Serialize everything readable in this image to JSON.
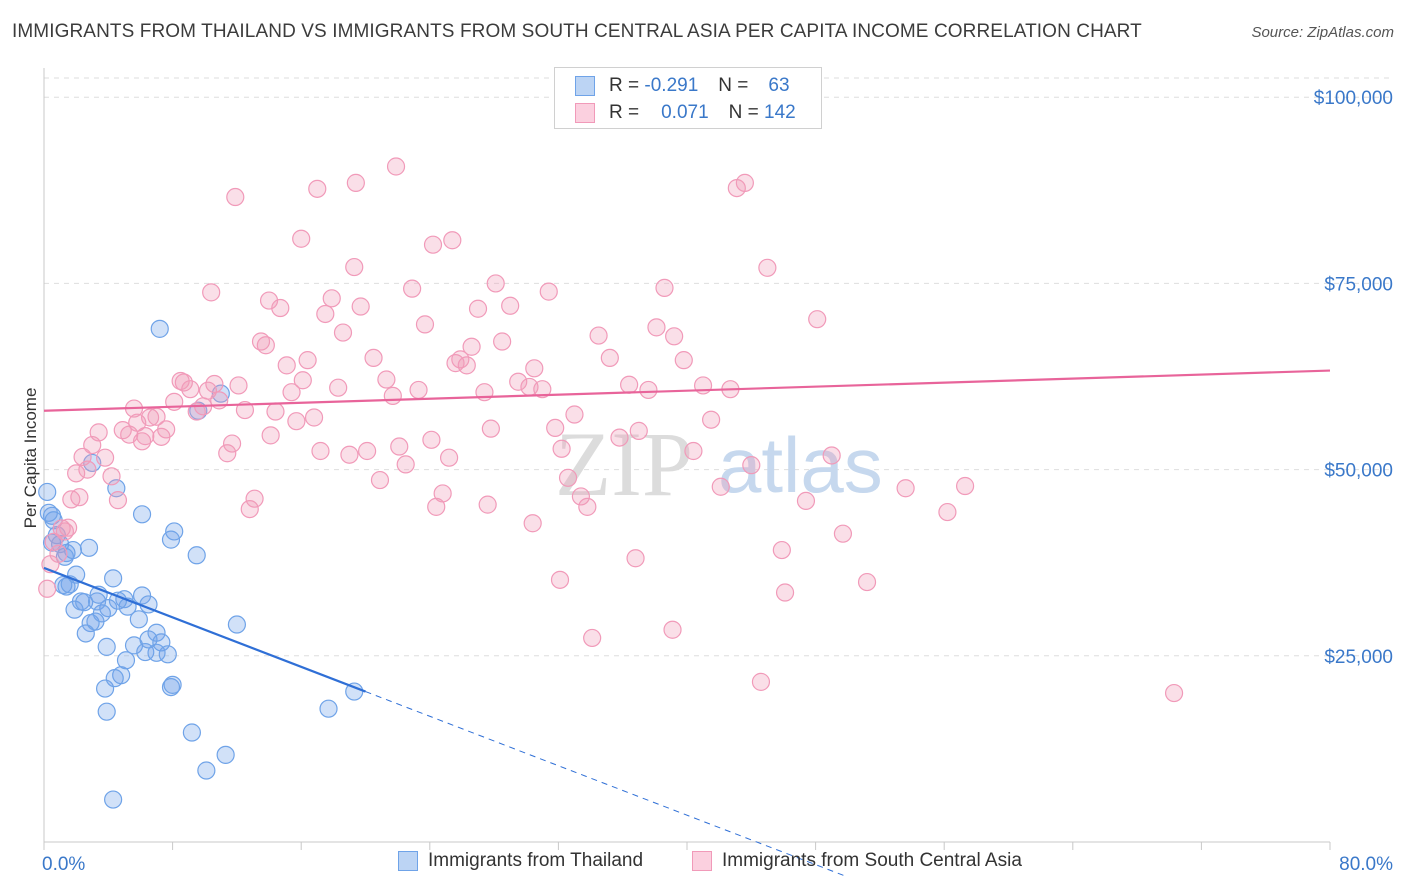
{
  "chart_data": {
    "type": "scatter",
    "title": "IMMIGRANTS FROM THAILAND VS IMMIGRANTS FROM SOUTH CENTRAL ASIA PER CAPITA INCOME CORRELATION CHART",
    "source": "Source: ZipAtlas.com",
    "xlabel": "",
    "ylabel": "Per Capita Income",
    "xlim": [
      0,
      80
    ],
    "ylim": [
      0,
      105000
    ],
    "x_tick_labels": [
      "0.0%",
      "80.0%"
    ],
    "y_ticks": [
      25000,
      50000,
      75000,
      100000
    ],
    "y_tick_labels": [
      "$25,000",
      "$50,000",
      "$75,000",
      "$100,000"
    ],
    "watermark": {
      "zip": "ZIP",
      "atlas": "atlas"
    },
    "legend": {
      "rows": [
        {
          "r_label": "R =",
          "r_value": "-0.291",
          "n_label": "N =",
          "n_value": "63"
        },
        {
          "r_label": "R =",
          "r_value": "0.071",
          "n_label": "N =",
          "n_value": "142"
        }
      ]
    },
    "series": [
      {
        "name": "Immigrants from Thailand",
        "color": "#6fa3e8",
        "line_color": "#2f6fd6",
        "trend": {
          "x0": 0,
          "y0": 36800,
          "x1": 20,
          "y1": 20200,
          "x_dash_end": 50
        },
        "points": [
          [
            0.2,
            47000
          ],
          [
            0.3,
            44200
          ],
          [
            0.5,
            43800
          ],
          [
            0.6,
            43200
          ],
          [
            0.8,
            41200
          ],
          [
            0.5,
            40200
          ],
          [
            1.0,
            40000
          ],
          [
            1.4,
            38800
          ],
          [
            1.8,
            39200
          ],
          [
            2.8,
            39500
          ],
          [
            1.3,
            38300
          ],
          [
            1.4,
            34300
          ],
          [
            1.2,
            34500
          ],
          [
            1.6,
            34600
          ],
          [
            1.9,
            31200
          ],
          [
            2.0,
            35900
          ],
          [
            2.3,
            32300
          ],
          [
            2.5,
            32200
          ],
          [
            2.9,
            29400
          ],
          [
            2.6,
            28000
          ],
          [
            3.2,
            29600
          ],
          [
            3.4,
            33200
          ],
          [
            4.0,
            31400
          ],
          [
            3.6,
            30700
          ],
          [
            3.3,
            32300
          ],
          [
            4.3,
            35400
          ],
          [
            3.9,
            26200
          ],
          [
            4.8,
            22400
          ],
          [
            5.0,
            32600
          ],
          [
            4.6,
            32400
          ],
          [
            5.1,
            24400
          ],
          [
            5.9,
            29900
          ],
          [
            5.2,
            31600
          ],
          [
            5.6,
            26400
          ],
          [
            6.1,
            33100
          ],
          [
            6.5,
            27200
          ],
          [
            6.3,
            25500
          ],
          [
            6.5,
            31900
          ],
          [
            7.0,
            28100
          ],
          [
            7.3,
            26800
          ],
          [
            7.7,
            25200
          ],
          [
            7.0,
            25400
          ],
          [
            7.9,
            20800
          ],
          [
            8.0,
            21100
          ],
          [
            3.8,
            20600
          ],
          [
            4.4,
            22000
          ],
          [
            3.9,
            17500
          ],
          [
            4.5,
            47500
          ],
          [
            3.0,
            50900
          ],
          [
            6.1,
            44000
          ],
          [
            8.1,
            41700
          ],
          [
            7.9,
            40600
          ],
          [
            9.6,
            57900
          ],
          [
            11.0,
            60200
          ],
          [
            7.2,
            68900
          ],
          [
            9.5,
            38500
          ],
          [
            12.0,
            29200
          ],
          [
            11.3,
            11700
          ],
          [
            10.1,
            9600
          ],
          [
            9.2,
            14700
          ],
          [
            4.3,
            5700
          ],
          [
            17.7,
            17900
          ],
          [
            19.3,
            20200
          ]
        ]
      },
      {
        "name": "Immigrants from South Central Asia",
        "color": "#f19ab9",
        "line_color": "#e8649a",
        "trend": {
          "x0": 0,
          "y0": 57900,
          "x1": 80,
          "y1": 63300
        },
        "points": [
          [
            0.2,
            34000
          ],
          [
            0.4,
            37300
          ],
          [
            0.6,
            40300
          ],
          [
            0.9,
            38700
          ],
          [
            1.1,
            42100
          ],
          [
            1.3,
            41700
          ],
          [
            1.7,
            46000
          ],
          [
            1.5,
            42200
          ],
          [
            2.0,
            49500
          ],
          [
            2.2,
            46300
          ],
          [
            2.4,
            51700
          ],
          [
            2.7,
            50000
          ],
          [
            3.0,
            53300
          ],
          [
            3.4,
            55000
          ],
          [
            3.8,
            51600
          ],
          [
            4.2,
            49100
          ],
          [
            4.6,
            45900
          ],
          [
            4.9,
            55300
          ],
          [
            5.3,
            54700
          ],
          [
            5.6,
            58200
          ],
          [
            5.8,
            56300
          ],
          [
            6.1,
            53800
          ],
          [
            6.3,
            54500
          ],
          [
            6.6,
            57000
          ],
          [
            7.0,
            57100
          ],
          [
            7.3,
            54400
          ],
          [
            7.6,
            55400
          ],
          [
            8.1,
            59100
          ],
          [
            8.5,
            61900
          ],
          [
            8.7,
            61700
          ],
          [
            9.1,
            60800
          ],
          [
            9.5,
            57800
          ],
          [
            9.9,
            58500
          ],
          [
            10.2,
            60600
          ],
          [
            10.6,
            61500
          ],
          [
            10.9,
            59300
          ],
          [
            11.4,
            52200
          ],
          [
            11.7,
            53500
          ],
          [
            12.1,
            61300
          ],
          [
            12.5,
            58000
          ],
          [
            12.8,
            44700
          ],
          [
            13.1,
            46100
          ],
          [
            13.5,
            67200
          ],
          [
            13.8,
            66700
          ],
          [
            14.1,
            54600
          ],
          [
            14.4,
            57800
          ],
          [
            14.7,
            71700
          ],
          [
            15.1,
            64000
          ],
          [
            15.4,
            60400
          ],
          [
            15.7,
            56500
          ],
          [
            16.1,
            62000
          ],
          [
            16.4,
            64700
          ],
          [
            16.8,
            57000
          ],
          [
            17.2,
            52500
          ],
          [
            17.5,
            70900
          ],
          [
            17.9,
            73000
          ],
          [
            18.3,
            61000
          ],
          [
            18.6,
            68400
          ],
          [
            19.0,
            52000
          ],
          [
            19.3,
            77200
          ],
          [
            19.7,
            71900
          ],
          [
            20.1,
            52500
          ],
          [
            20.5,
            65000
          ],
          [
            20.9,
            48600
          ],
          [
            21.3,
            62100
          ],
          [
            21.7,
            59900
          ],
          [
            22.1,
            53100
          ],
          [
            22.5,
            50700
          ],
          [
            22.9,
            74300
          ],
          [
            23.3,
            60700
          ],
          [
            23.7,
            69500
          ],
          [
            24.1,
            54000
          ],
          [
            24.4,
            45000
          ],
          [
            24.8,
            46800
          ],
          [
            25.2,
            51600
          ],
          [
            25.6,
            64300
          ],
          [
            25.9,
            64800
          ],
          [
            26.3,
            64000
          ],
          [
            26.6,
            66500
          ],
          [
            27.0,
            71600
          ],
          [
            27.4,
            60400
          ],
          [
            27.8,
            55500
          ],
          [
            28.1,
            75000
          ],
          [
            28.5,
            67200
          ],
          [
            29.0,
            72000
          ],
          [
            29.5,
            61800
          ],
          [
            30.2,
            61100
          ],
          [
            30.5,
            63600
          ],
          [
            31.0,
            60800
          ],
          [
            31.4,
            73900
          ],
          [
            31.8,
            55600
          ],
          [
            32.2,
            52800
          ],
          [
            32.6,
            48900
          ],
          [
            33.0,
            57400
          ],
          [
            33.4,
            46400
          ],
          [
            33.8,
            45000
          ],
          [
            34.5,
            68000
          ],
          [
            35.2,
            65000
          ],
          [
            35.8,
            54300
          ],
          [
            36.4,
            61400
          ],
          [
            37.0,
            55200
          ],
          [
            37.6,
            60700
          ],
          [
            38.1,
            69100
          ],
          [
            38.6,
            74400
          ],
          [
            39.2,
            67900
          ],
          [
            39.8,
            64700
          ],
          [
            40.4,
            52500
          ],
          [
            41.0,
            61300
          ],
          [
            41.5,
            56700
          ],
          [
            42.1,
            47700
          ],
          [
            42.7,
            60800
          ],
          [
            43.1,
            87800
          ],
          [
            43.6,
            88500
          ],
          [
            44.0,
            50600
          ],
          [
            45.0,
            77100
          ],
          [
            46.1,
            33500
          ],
          [
            48.1,
            70200
          ],
          [
            49.0,
            51900
          ],
          [
            57.3,
            47800
          ],
          [
            70.3,
            20000
          ],
          [
            10.4,
            73800
          ],
          [
            11.9,
            86600
          ],
          [
            14.0,
            72700
          ],
          [
            16.0,
            81000
          ],
          [
            17.0,
            87700
          ],
          [
            19.4,
            88500
          ],
          [
            21.9,
            90700
          ],
          [
            24.2,
            80200
          ],
          [
            25.4,
            80800
          ],
          [
            27.6,
            45300
          ],
          [
            30.4,
            42800
          ],
          [
            32.1,
            35200
          ],
          [
            34.1,
            27400
          ],
          [
            36.8,
            38100
          ],
          [
            39.1,
            28500
          ],
          [
            44.6,
            21500
          ],
          [
            45.9,
            39200
          ],
          [
            47.4,
            45800
          ],
          [
            49.7,
            41400
          ],
          [
            51.2,
            34900
          ],
          [
            53.6,
            47500
          ],
          [
            56.2,
            44300
          ]
        ]
      }
    ]
  }
}
